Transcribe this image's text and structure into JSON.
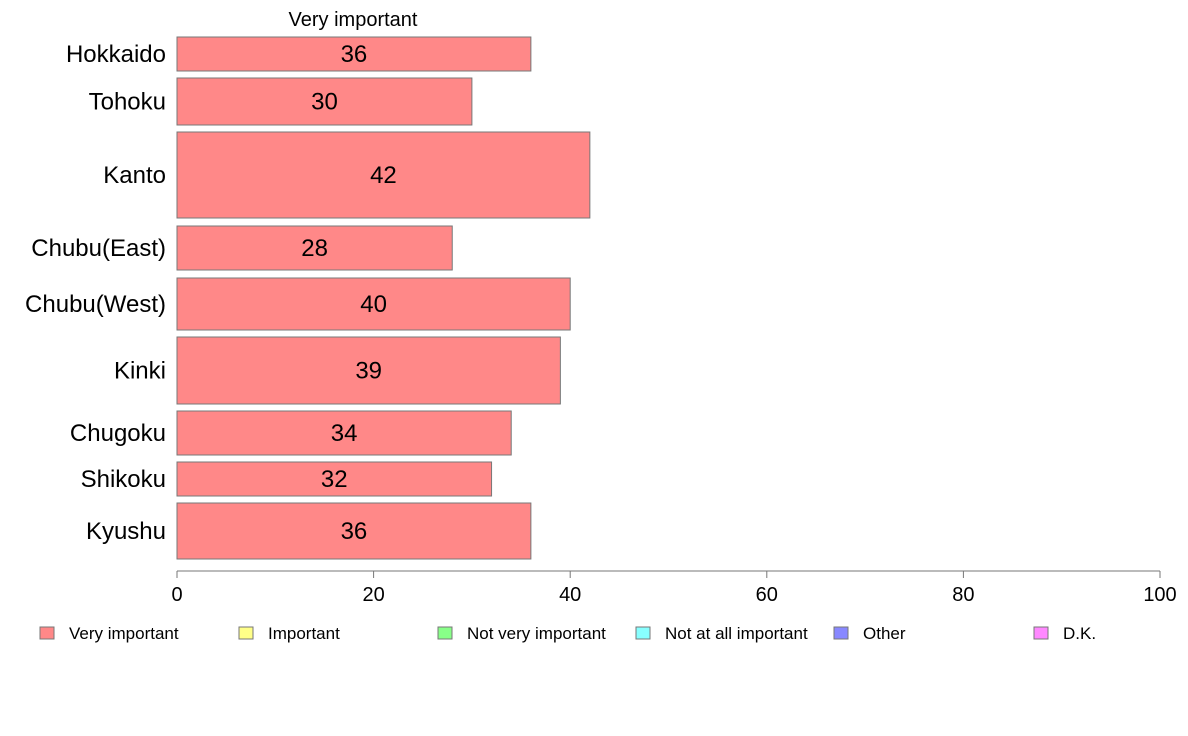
{
  "chart_data": {
    "type": "bar",
    "orientation": "horizontal",
    "header": "Very important",
    "categories": [
      "Hokkaido",
      "Tohoku",
      "Kanto",
      "Chubu(East)",
      "Chubu(West)",
      "Kinki",
      "Chugoku",
      "Shikoku",
      "Kyushu"
    ],
    "series": [
      {
        "name": "Very important",
        "values": [
          36,
          30,
          42,
          28,
          40,
          39,
          34,
          32,
          36
        ]
      }
    ],
    "xlim": [
      0,
      100
    ],
    "xticks": [
      0,
      20,
      40,
      60,
      80,
      100
    ],
    "grid": false,
    "legend": [
      {
        "label": "Very important",
        "color": "#ff8888"
      },
      {
        "label": "Important",
        "color": "#ffff88"
      },
      {
        "label": "Not very important",
        "color": "#88ff88"
      },
      {
        "label": "Not at all important",
        "color": "#88ffff"
      },
      {
        "label": "Other",
        "color": "#8888ff"
      },
      {
        "label": "D.K.",
        "color": "#ff88ff"
      }
    ],
    "legend_position": "bottom"
  }
}
